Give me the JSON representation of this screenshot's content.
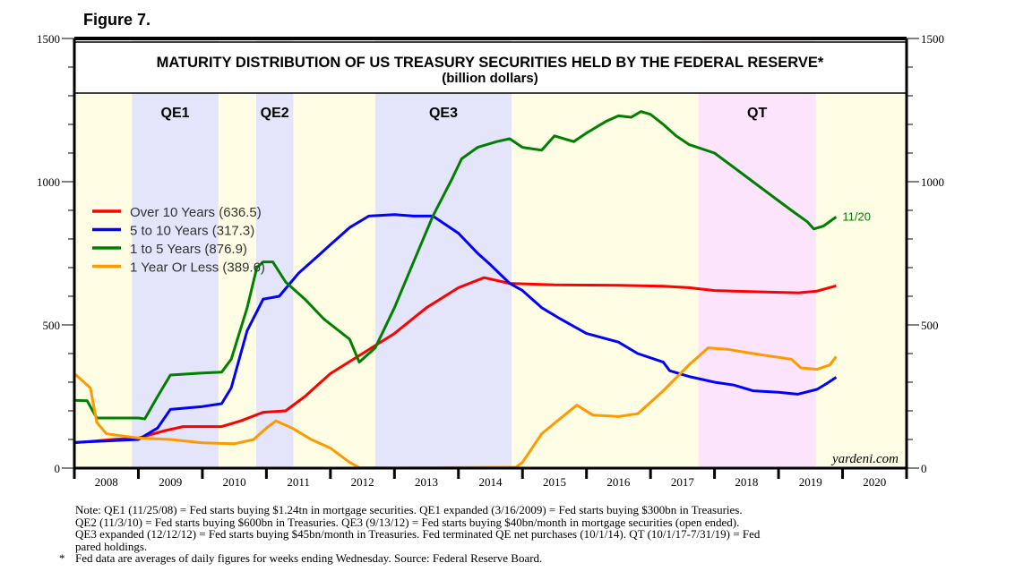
{
  "figure_label": "Figure 7.",
  "chart_data": {
    "type": "line",
    "title": "MATURITY DISTRIBUTION OF US TREASURY SECURITIES HELD BY THE FEDERAL RESERVE*",
    "subtitle": "(billion dollars)",
    "xlabel": "",
    "ylabel": "",
    "xlim": [
      2008,
      2021
    ],
    "ylim": [
      0,
      1500
    ],
    "y_ticks": [
      0,
      500,
      1000,
      1500
    ],
    "x_tick_labels": [
      "2008",
      "2009",
      "2010",
      "2011",
      "2012",
      "2013",
      "2014",
      "2015",
      "2016",
      "2017",
      "2018",
      "2019",
      "2020"
    ],
    "grid": false,
    "legend_position": "left-middle",
    "source_label": "yardeni.com",
    "end_annotation": "11/20",
    "shaded_periods": [
      {
        "label": "QE1",
        "start": 2008.9,
        "end": 2010.25,
        "color": "#e4e4fa"
      },
      {
        "label": "QE2",
        "start": 2010.84,
        "end": 2011.42,
        "color": "#e4e4fa"
      },
      {
        "label": "QE3",
        "start": 2012.7,
        "end": 2014.83,
        "color": "#e4e4fa"
      },
      {
        "label": "QT",
        "start": 2017.75,
        "end": 2019.58,
        "color": "#fce4fc"
      }
    ],
    "background_color": "#fffee4",
    "series": [
      {
        "name": "Over 10 Years (636.5)",
        "color": "#ff0000",
        "x": [
          2008,
          2008.6,
          2009.0,
          2009.4,
          2009.7,
          2010.3,
          2010.6,
          2010.95,
          2011.3,
          2011.6,
          2012.0,
          2012.5,
          2013.0,
          2013.5,
          2014.0,
          2014.4,
          2014.8,
          2015.5,
          2016.5,
          2017.2,
          2017.6,
          2018.0,
          2018.8,
          2019.3,
          2019.6,
          2019.9
        ],
        "values": [
          88,
          100,
          105,
          130,
          145,
          145,
          165,
          195,
          200,
          250,
          330,
          400,
          470,
          560,
          630,
          665,
          645,
          640,
          638,
          635,
          630,
          620,
          615,
          612,
          618,
          636.5
        ]
      },
      {
        "name": "5 to 10 Years (317.3)",
        "color": "#0000ff",
        "x": [
          2008,
          2009.0,
          2009.3,
          2009.5,
          2010.0,
          2010.3,
          2010.45,
          2010.7,
          2010.95,
          2011.2,
          2011.5,
          2011.8,
          2012.0,
          2012.3,
          2012.6,
          2013.0,
          2013.3,
          2013.6,
          2013.8,
          2014.0,
          2014.3,
          2014.5,
          2014.8,
          2015.0,
          2015.3,
          2015.6,
          2016.0,
          2016.5,
          2016.8,
          2017.2,
          2017.3,
          2017.6,
          2018.0,
          2018.3,
          2018.6,
          2019.0,
          2019.3,
          2019.6,
          2019.75,
          2019.9
        ],
        "values": [
          90,
          100,
          140,
          205,
          215,
          225,
          280,
          480,
          590,
          600,
          680,
          740,
          780,
          840,
          880,
          885,
          880,
          880,
          850,
          820,
          750,
          710,
          645,
          620,
          560,
          520,
          470,
          440,
          400,
          370,
          340,
          320,
          300,
          290,
          270,
          265,
          258,
          275,
          295,
          317.3
        ]
      },
      {
        "name": "1 to 5 Years (876.9)",
        "color": "#008000",
        "x": [
          2008,
          2008.2,
          2008.35,
          2009.0,
          2009.1,
          2009.3,
          2009.5,
          2010.0,
          2010.3,
          2010.45,
          2010.7,
          2010.85,
          2010.95,
          2011.1,
          2011.3,
          2011.6,
          2011.9,
          2012.3,
          2012.45,
          2012.7,
          2013.0,
          2013.3,
          2013.6,
          2013.9,
          2014.05,
          2014.3,
          2014.6,
          2014.8,
          2015.0,
          2015.3,
          2015.5,
          2015.8,
          2016.0,
          2016.3,
          2016.5,
          2016.7,
          2016.85,
          2017.0,
          2017.2,
          2017.4,
          2017.6,
          2018.0,
          2018.3,
          2018.6,
          2018.9,
          2019.2,
          2019.45,
          2019.55,
          2019.7,
          2019.9
        ],
        "values": [
          237,
          235,
          175,
          175,
          172,
          250,
          325,
          332,
          335,
          380,
          560,
          700,
          720,
          720,
          650,
          590,
          520,
          450,
          370,
          420,
          560,
          720,
          880,
          1010,
          1080,
          1120,
          1140,
          1150,
          1120,
          1110,
          1160,
          1140,
          1170,
          1210,
          1230,
          1225,
          1245,
          1235,
          1200,
          1160,
          1130,
          1100,
          1050,
          1000,
          950,
          900,
          860,
          835,
          845,
          876.9
        ]
      },
      {
        "name": "1 Year Or Less (389.6)",
        "color": "#ff9900",
        "x": [
          2008,
          2008.1,
          2008.25,
          2008.35,
          2008.5,
          2009.0,
          2009.5,
          2010.0,
          2010.5,
          2010.8,
          2011.0,
          2011.15,
          2011.4,
          2011.7,
          2012.0,
          2012.3,
          2012.45,
          2013.0,
          2014.0,
          2014.9,
          2015.0,
          2015.3,
          2015.6,
          2015.85,
          2016.1,
          2016.5,
          2016.8,
          2017.2,
          2017.6,
          2017.9,
          2018.2,
          2018.6,
          2018.9,
          2019.2,
          2019.35,
          2019.6,
          2019.8,
          2019.9
        ],
        "values": [
          330,
          310,
          280,
          160,
          120,
          105,
          100,
          88,
          85,
          100,
          140,
          165,
          140,
          100,
          70,
          20,
          2,
          1,
          2,
          3,
          20,
          120,
          175,
          220,
          185,
          180,
          190,
          270,
          360,
          420,
          415,
          400,
          390,
          380,
          350,
          345,
          360,
          389.6
        ]
      }
    ]
  },
  "notes": {
    "line1": "Note: QE1 (11/25/08) = Fed starts buying $1.24tn in mortgage securities. QE1 expanded (3/16/2009) = Fed starts buying $300bn in Treasuries.",
    "line2": "QE2 (11/3/10) = Fed starts buying $600bn in Treasuries. QE3 (9/13/12) = Fed starts buying $40bn/month in mortgage securities (open ended).",
    "line3": "QE3 expanded (12/12/12) = Fed starts buying $45bn/month in Treasuries. Fed terminated QE net purchases (10/1/14). QT (10/1/17-7/31/19) = Fed",
    "line4": "pared holdings.",
    "footnote_marker": "*",
    "footnote": "Fed data are averages of daily figures for weeks ending Wednesday. Source: Federal Reserve Board."
  }
}
